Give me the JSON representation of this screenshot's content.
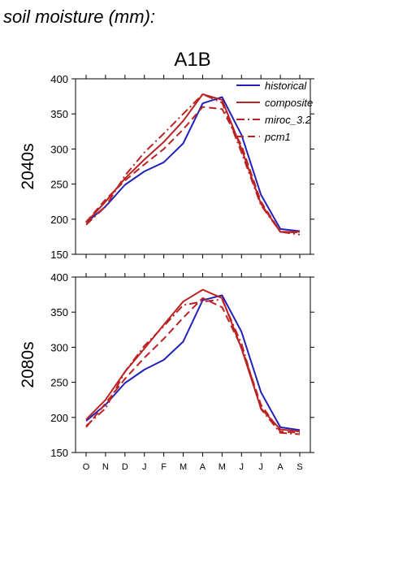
{
  "page_title": "soil moisture (mm):",
  "chart_data": [
    {
      "type": "line",
      "title": "A1B",
      "ylabel": "2040s",
      "categories": [
        "O",
        "N",
        "D",
        "J",
        "F",
        "M",
        "A",
        "M",
        "J",
        "J",
        "A",
        "S"
      ],
      "ylim": [
        150,
        400
      ],
      "yticks": [
        150,
        200,
        250,
        300,
        350,
        400
      ],
      "legend": "top-right",
      "series": [
        {
          "name": "historical",
          "color": "#2222bb",
          "dash": "solid",
          "values": [
            195,
            218,
            249,
            268,
            281,
            308,
            365,
            374,
            320,
            235,
            186,
            183
          ]
        },
        {
          "name": "composite",
          "color": "#bb2222",
          "dash": "solid",
          "values": [
            195,
            225,
            258,
            285,
            310,
            340,
            378,
            370,
            300,
            222,
            182,
            182
          ]
        },
        {
          "name": "miroc_3.2",
          "color": "#bb2222",
          "dash": "dashdot",
          "values": [
            192,
            218,
            262,
            295,
            322,
            350,
            378,
            366,
            295,
            220,
            182,
            178
          ]
        },
        {
          "name": "pcm1",
          "color": "#bb2222",
          "dash": "dash",
          "values": [
            196,
            228,
            255,
            278,
            300,
            328,
            360,
            357,
            305,
            225,
            182,
            181
          ]
        }
      ]
    },
    {
      "type": "line",
      "title": "",
      "ylabel": "2080s",
      "categories": [
        "O",
        "N",
        "D",
        "J",
        "F",
        "M",
        "A",
        "M",
        "J",
        "J",
        "A",
        "S"
      ],
      "ylim": [
        150,
        400
      ],
      "yticks": [
        150,
        200,
        250,
        300,
        350,
        400
      ],
      "series": [
        {
          "name": "historical",
          "color": "#2222bb",
          "dash": "solid",
          "values": [
            195,
            218,
            249,
            268,
            282,
            308,
            367,
            374,
            322,
            236,
            186,
            182
          ]
        },
        {
          "name": "composite",
          "color": "#bb2222",
          "dash": "solid",
          "values": [
            197,
            225,
            265,
            298,
            332,
            365,
            382,
            370,
            298,
            213,
            183,
            180
          ]
        },
        {
          "name": "miroc_3.2",
          "color": "#bb2222",
          "dash": "dashdot",
          "values": [
            188,
            213,
            265,
            302,
            330,
            360,
            365,
            368,
            305,
            212,
            178,
            176
          ]
        },
        {
          "name": "pcm1",
          "color": "#bb2222",
          "dash": "dash",
          "values": [
            186,
            220,
            255,
            285,
            312,
            342,
            370,
            357,
            300,
            218,
            180,
            178
          ]
        }
      ]
    }
  ]
}
